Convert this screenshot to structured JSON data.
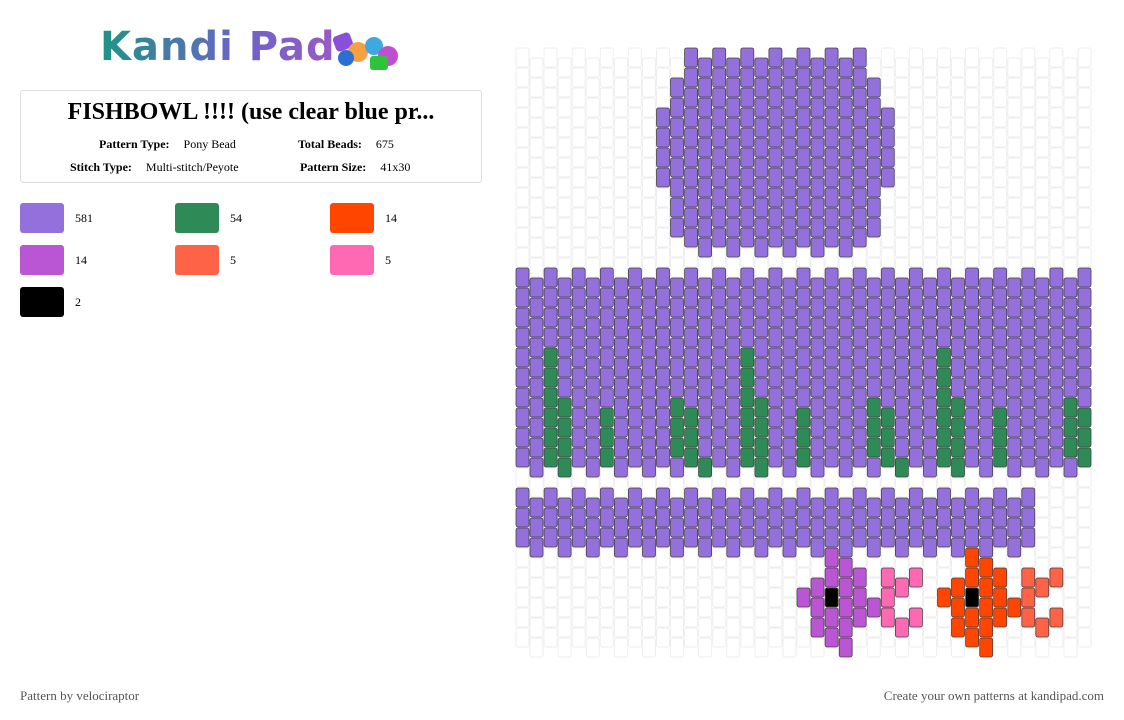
{
  "header": {
    "logo": "Kandi Pad"
  },
  "pattern": {
    "title": "FISHBOWL !!!! (use clear blue pr...",
    "info": [
      {
        "label": "Pattern Type:",
        "value": "Pony Bead"
      },
      {
        "label": "Total Beads:",
        "value": "675"
      },
      {
        "label": "Stitch Type:",
        "value": "Multi-stitch/Peyote"
      },
      {
        "label": "Pattern Size:",
        "value": "41x30"
      }
    ],
    "colors": [
      {
        "color": "#9370db",
        "count": 581
      },
      {
        "color": "#2e8b57",
        "count": 54
      },
      {
        "color": "#ff4500",
        "count": 14
      },
      {
        "color": "#ba55d3",
        "count": 14
      },
      {
        "color": "#ff6347",
        "count": 5
      },
      {
        "color": "#ff69b4",
        "count": 5
      },
      {
        "color": "#000000",
        "count": 2
      }
    ]
  },
  "footer": {
    "left": "Pattern by velociraptor",
    "right": "Create your own patterns at kandipad.com"
  }
}
